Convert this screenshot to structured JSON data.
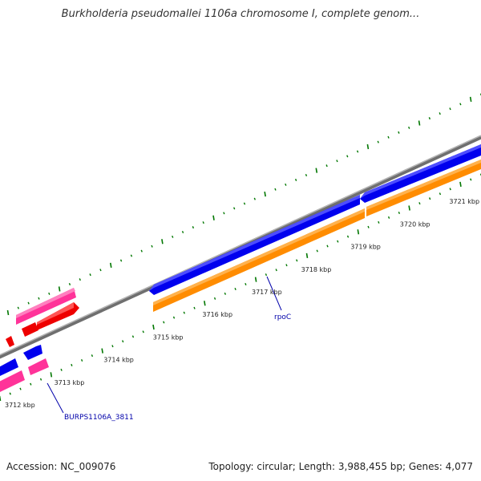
{
  "title": "Burkholderia pseudomallei 1106a chromosome I, complete genom...",
  "footer": {
    "accession": "Accession: NC_009076",
    "summary": "Topology: circular; Length: 3,988,455 bp; Genes: 4,077"
  },
  "scale_labels": [
    "3712 kbp",
    "3713 kbp",
    "3714 kbp",
    "3715 kbp",
    "3716 kbp",
    "3717 kbp",
    "3718 kbp",
    "3719 kbp",
    "3720 kbp",
    "3721 kbp"
  ],
  "gene_labels": {
    "rpoc": "rpoC",
    "burps": "BURPS1106A_3811"
  },
  "colors": {
    "backbone": "#8c8c8c",
    "forward_cds": "#0000ee",
    "reverse_cds": "#ff8c00",
    "rna_pink": "#ff3399",
    "rna_red": "#ee0000",
    "tick": "#007700",
    "label": "#0000aa"
  }
}
